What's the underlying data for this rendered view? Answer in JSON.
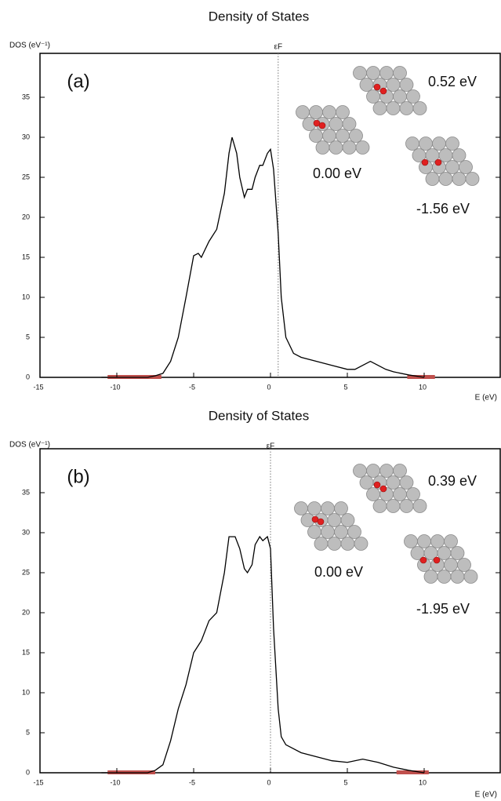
{
  "chart_data": [
    {
      "type": "line",
      "title": "Density of States",
      "y_label": "DOS (eV⁻¹)",
      "x_label": "E (eV)",
      "fermi_label": "εF",
      "fermi_level": 0.5,
      "panel_label": "(a)",
      "annotations": [
        "0.52 eV",
        "0.00 eV",
        "-1.56 eV"
      ],
      "xlim": [
        -15,
        15
      ],
      "ylim": [
        0,
        40
      ],
      "xticks": [
        -15,
        -10,
        -5,
        0,
        5,
        10
      ],
      "yticks": [
        0,
        5,
        10,
        15,
        20,
        25,
        30,
        35
      ],
      "highlights": [
        [
          -10.6,
          -7.1
        ],
        [
          8.9,
          10.7
        ]
      ],
      "highlight_color": "#c0504d",
      "x": [
        -11,
        -8,
        -7.5,
        -7,
        -6.5,
        -6,
        -5.5,
        -5,
        -4.7,
        -4.5,
        -4,
        -3.5,
        -3,
        -2.7,
        -2.5,
        -2.2,
        -2,
        -1.7,
        -1.5,
        -1.2,
        -1,
        -0.7,
        -0.5,
        -0.2,
        0,
        0.2,
        0.5,
        0.7,
        1,
        1.5,
        2,
        3,
        4,
        5,
        5.5,
        6,
        6.5,
        7,
        7.5,
        8,
        9,
        10
      ],
      "series": [
        {
          "color": "#000000",
          "values": [
            0,
            0,
            0.2,
            0.5,
            2,
            5,
            10,
            15.2,
            15.5,
            15,
            17,
            18.5,
            23,
            28,
            30,
            28,
            25,
            22.5,
            23.5,
            23.5,
            25,
            26.5,
            26.5,
            28,
            28.5,
            26,
            18,
            10,
            5,
            3,
            2.5,
            2,
            1.5,
            1,
            1,
            1.5,
            2,
            1.5,
            1,
            0.7,
            0.3,
            0
          ]
        }
      ]
    },
    {
      "type": "line",
      "title": "Density of States",
      "y_label": "DOS (eV⁻¹)",
      "x_label": "E (eV)",
      "fermi_label": "εF",
      "fermi_level": 0,
      "panel_label": "(b)",
      "annotations": [
        "0.39 eV",
        "0.00 eV",
        "-1.95 eV"
      ],
      "xlim": [
        -15,
        15
      ],
      "ylim": [
        0,
        40
      ],
      "xticks": [
        -15,
        -10,
        -5,
        0,
        5,
        10
      ],
      "yticks": [
        0,
        5,
        10,
        15,
        20,
        25,
        30,
        35
      ],
      "highlights": [
        [
          -10.6,
          -7.5
        ],
        [
          8.2,
          10.3
        ]
      ],
      "highlight_color": "#c0504d",
      "x": [
        -11,
        -8,
        -7.5,
        -7,
        -6.5,
        -6,
        -5.5,
        -5,
        -4.5,
        -4,
        -3.5,
        -3,
        -2.7,
        -2.3,
        -2,
        -1.7,
        -1.5,
        -1.2,
        -1,
        -0.7,
        -0.5,
        -0.2,
        0,
        0.2,
        0.5,
        0.7,
        1,
        2,
        3,
        4,
        5,
        6,
        7,
        8,
        9,
        10
      ],
      "series": [
        {
          "color": "#000000",
          "values": [
            0,
            0,
            0.3,
            1,
            4,
            8,
            11,
            15,
            16.5,
            19,
            20,
            25,
            29.5,
            29.5,
            28,
            25.5,
            25,
            26,
            28.5,
            29.5,
            29,
            29.5,
            28,
            18,
            8,
            4.5,
            3.5,
            2.5,
            2,
            1.5,
            1.3,
            1.7,
            1.3,
            0.7,
            0.3,
            0
          ]
        }
      ]
    }
  ]
}
